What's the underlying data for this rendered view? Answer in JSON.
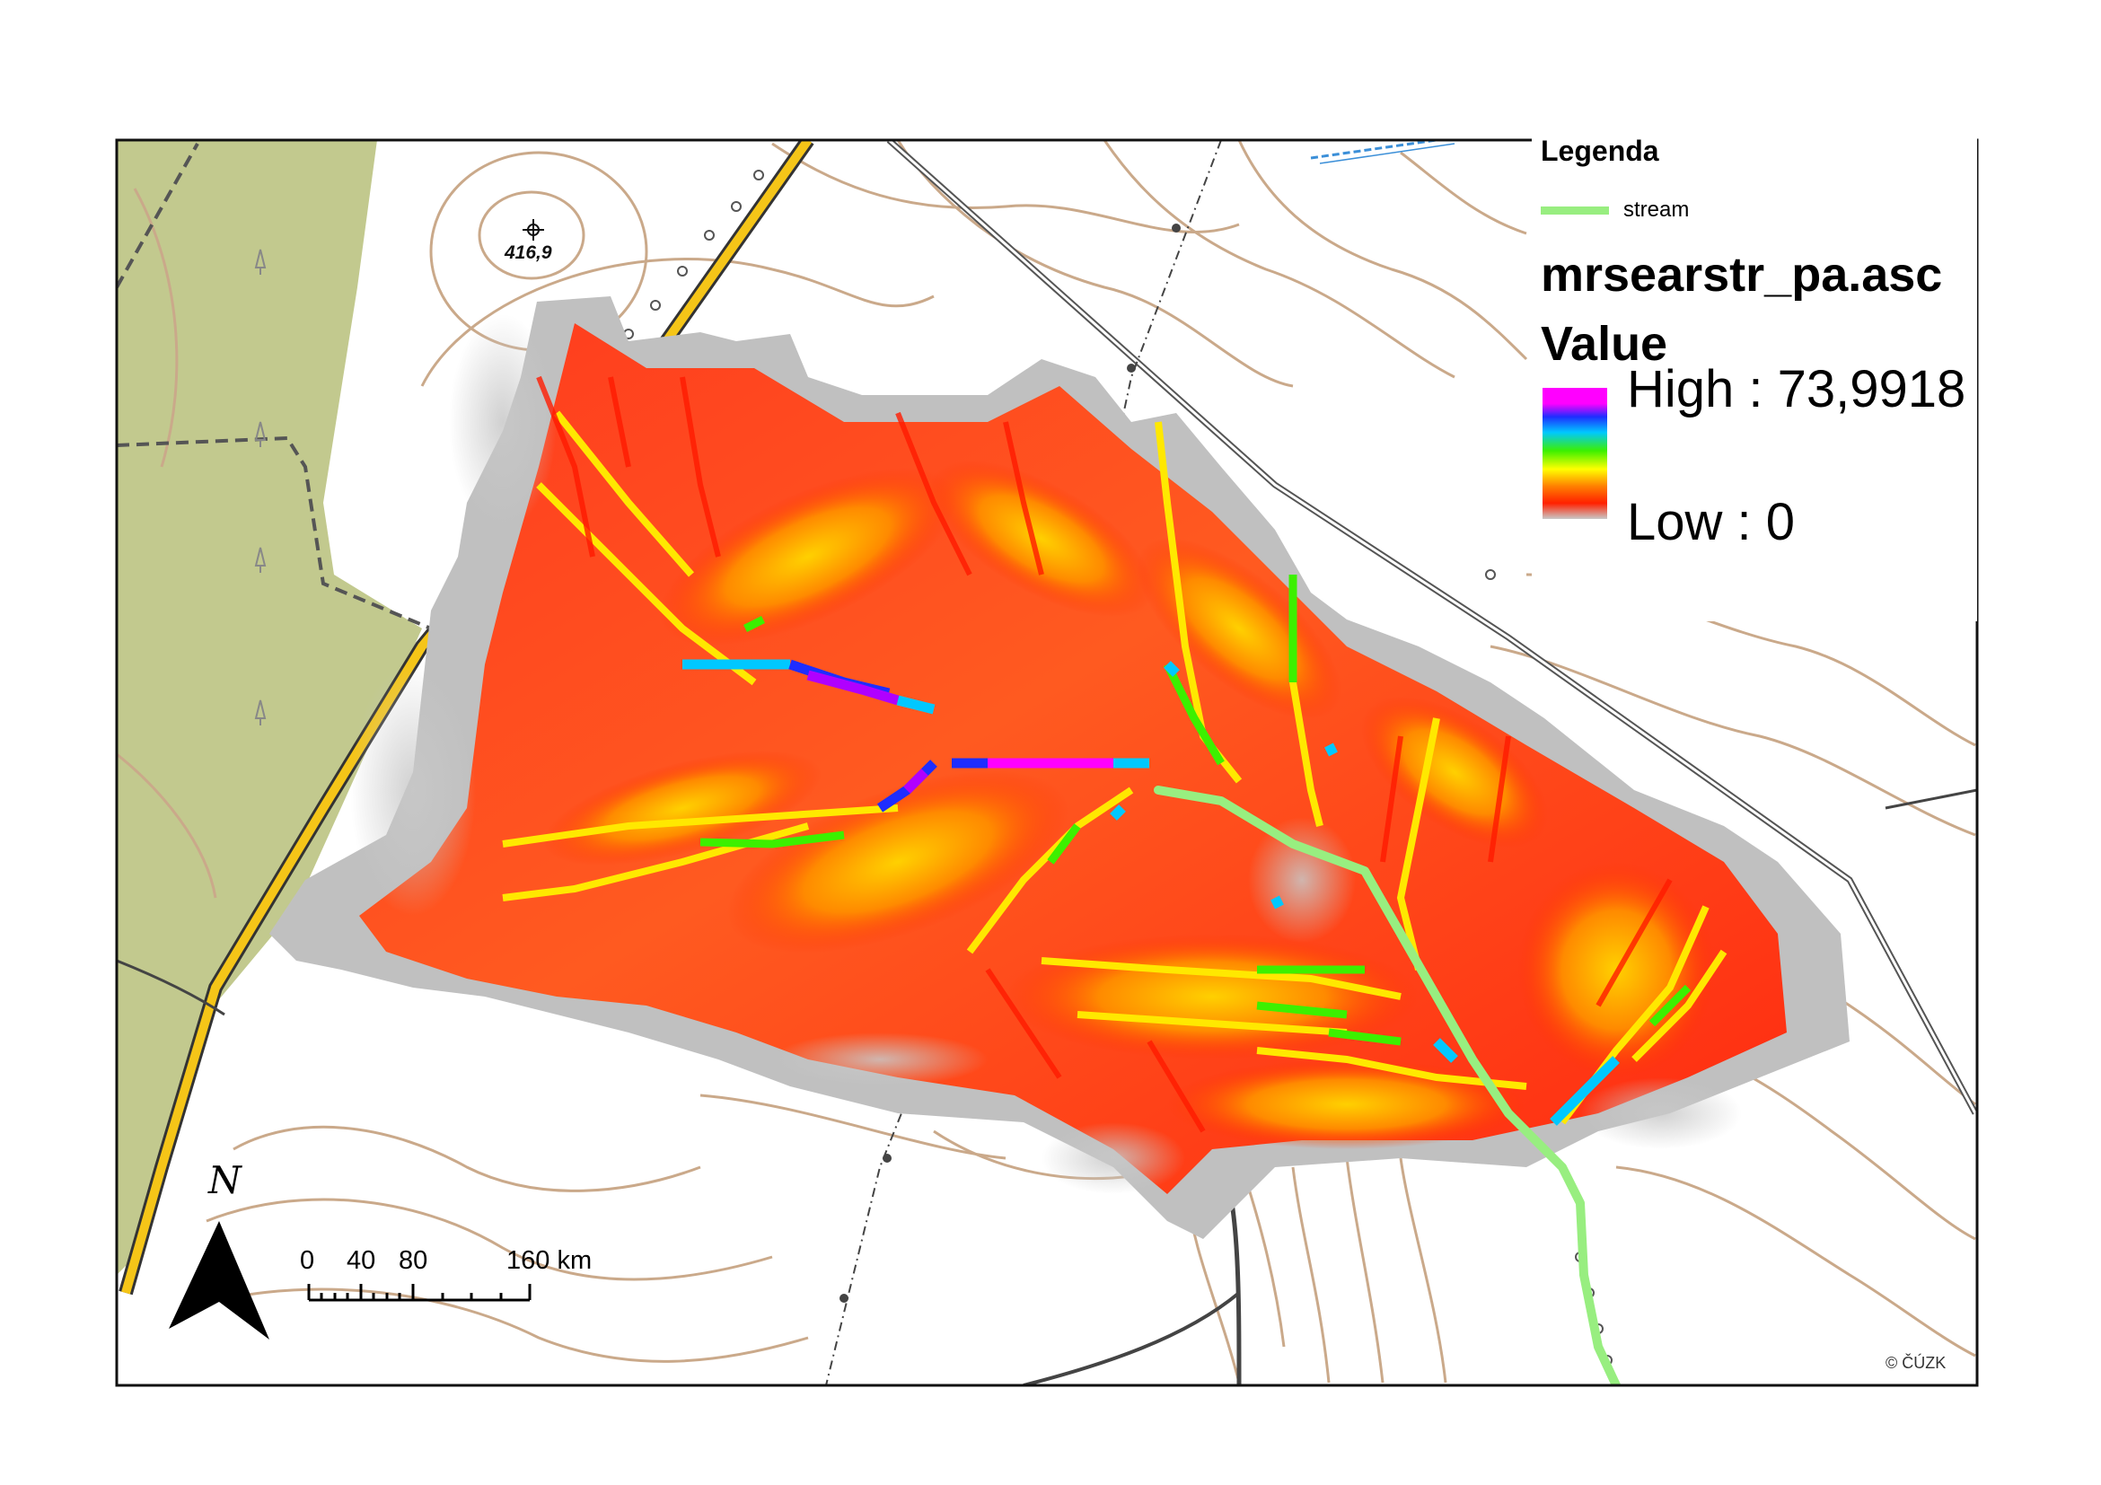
{
  "legend": {
    "title": "Legenda",
    "stream_label": "stream",
    "layer_name": "mrsearstr_pa.asc",
    "value_heading": "Value",
    "high_label": "High : 73,9918",
    "low_label": "Low : 0",
    "ramp_colors": [
      "#ff00ff",
      "#1e2dff",
      "#00c8ff",
      "#3cf000",
      "#ffff00",
      "#ff8000",
      "#ff2000",
      "#c8c8c8"
    ]
  },
  "map": {
    "spot_height": "416,9",
    "copyright": "© ČÚZK",
    "north_label": "N",
    "scale_labels": [
      "0",
      "40",
      "80",
      "160 km"
    ],
    "colors": {
      "forest": "#c2c98e",
      "contour": "#caa98a",
      "road": "#f5c518",
      "stream": "#98ee80",
      "raster_low": "#b8b8b8",
      "raster_high": "#ff00ff"
    }
  }
}
